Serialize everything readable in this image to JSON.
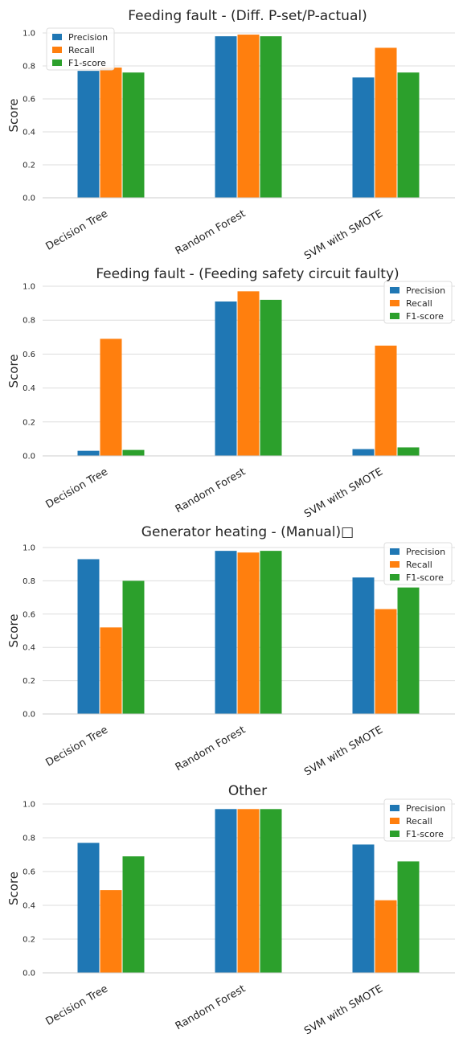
{
  "chart_data": [
    {
      "type": "bar",
      "title": "Feeding fault - (Diff. P-set/P-actual)",
      "ylabel": "Score",
      "xlabel": "",
      "ylim": [
        0,
        1.0
      ],
      "yticks": [
        "0.0",
        "0.2",
        "0.4",
        "0.6",
        "0.8",
        "1.0"
      ],
      "grid": true,
      "legend_position": "top-left",
      "categories": [
        "Decision Tree",
        "Random Forest",
        "SVM with SMOTE"
      ],
      "series": [
        {
          "name": "Precision",
          "color": "#1f77b4",
          "values": [
            0.77,
            0.98,
            0.73
          ]
        },
        {
          "name": "Recall",
          "color": "#ff7f0e",
          "values": [
            0.79,
            0.99,
            0.91
          ]
        },
        {
          "name": "F1-score",
          "color": "#2ca02c",
          "values": [
            0.76,
            0.98,
            0.76
          ]
        }
      ]
    },
    {
      "type": "bar",
      "title": "Feeding fault - (Feeding safety circuit faulty)",
      "ylabel": "Score",
      "xlabel": "",
      "ylim": [
        0,
        1.0
      ],
      "yticks": [
        "0.0",
        "0.2",
        "0.4",
        "0.6",
        "0.8",
        "1.0"
      ],
      "grid": true,
      "legend_position": "top-right",
      "categories": [
        "Decision Tree",
        "Random Forest",
        "SVM with SMOTE"
      ],
      "series": [
        {
          "name": "Precision",
          "color": "#1f77b4",
          "values": [
            0.03,
            0.91,
            0.04
          ]
        },
        {
          "name": "Recall",
          "color": "#ff7f0e",
          "values": [
            0.69,
            0.97,
            0.65
          ]
        },
        {
          "name": "F1-score",
          "color": "#2ca02c",
          "values": [
            0.035,
            0.92,
            0.05
          ]
        }
      ]
    },
    {
      "type": "bar",
      "title": "Generator heating - (Manual)□",
      "ylabel": "Score",
      "xlabel": "",
      "ylim": [
        0,
        1.0
      ],
      "yticks": [
        "0.0",
        "0.2",
        "0.4",
        "0.6",
        "0.8",
        "1.0"
      ],
      "grid": true,
      "legend_position": "top-right",
      "categories": [
        "Decision Tree",
        "Random Forest",
        "SVM with SMOTE"
      ],
      "series": [
        {
          "name": "Precision",
          "color": "#1f77b4",
          "values": [
            0.93,
            0.98,
            0.82
          ]
        },
        {
          "name": "Recall",
          "color": "#ff7f0e",
          "values": [
            0.52,
            0.97,
            0.63
          ]
        },
        {
          "name": "F1-score",
          "color": "#2ca02c",
          "values": [
            0.8,
            0.98,
            0.76
          ]
        }
      ]
    },
    {
      "type": "bar",
      "title": "Other",
      "ylabel": "Score",
      "xlabel": "",
      "ylim": [
        0,
        1.0
      ],
      "yticks": [
        "0.0",
        "0.2",
        "0.4",
        "0.6",
        "0.8",
        "1.0"
      ],
      "grid": true,
      "legend_position": "top-right",
      "categories": [
        "Decision Tree",
        "Random Forest",
        "SVM with SMOTE"
      ],
      "series": [
        {
          "name": "Precision",
          "color": "#1f77b4",
          "values": [
            0.77,
            0.97,
            0.76
          ]
        },
        {
          "name": "Recall",
          "color": "#ff7f0e",
          "values": [
            0.49,
            0.97,
            0.43
          ]
        },
        {
          "name": "F1-score",
          "color": "#2ca02c",
          "values": [
            0.69,
            0.97,
            0.66
          ]
        }
      ]
    }
  ]
}
